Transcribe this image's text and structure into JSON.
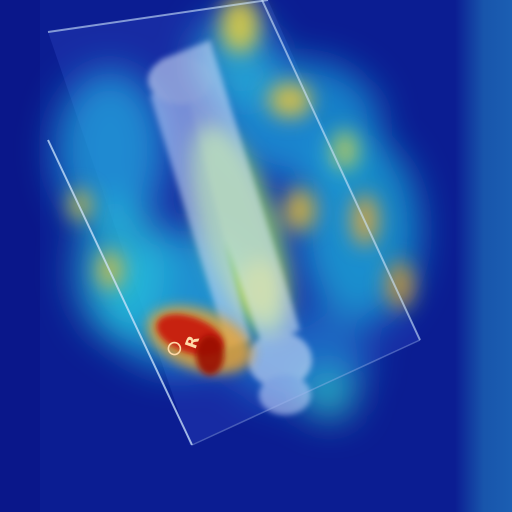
{
  "image": {
    "kind": "x-ray-heatmap-overlay",
    "marker_label": "R",
    "palette": {
      "background": "#0b1d92",
      "cool": "#1b3fd6",
      "cyan": "#2fd3e6",
      "green": "#7fe07a",
      "yellow": "#f2d33a",
      "orange": "#f08a1c",
      "red": "#c81a0a"
    },
    "icons": [
      "lead-marker-icon"
    ]
  }
}
